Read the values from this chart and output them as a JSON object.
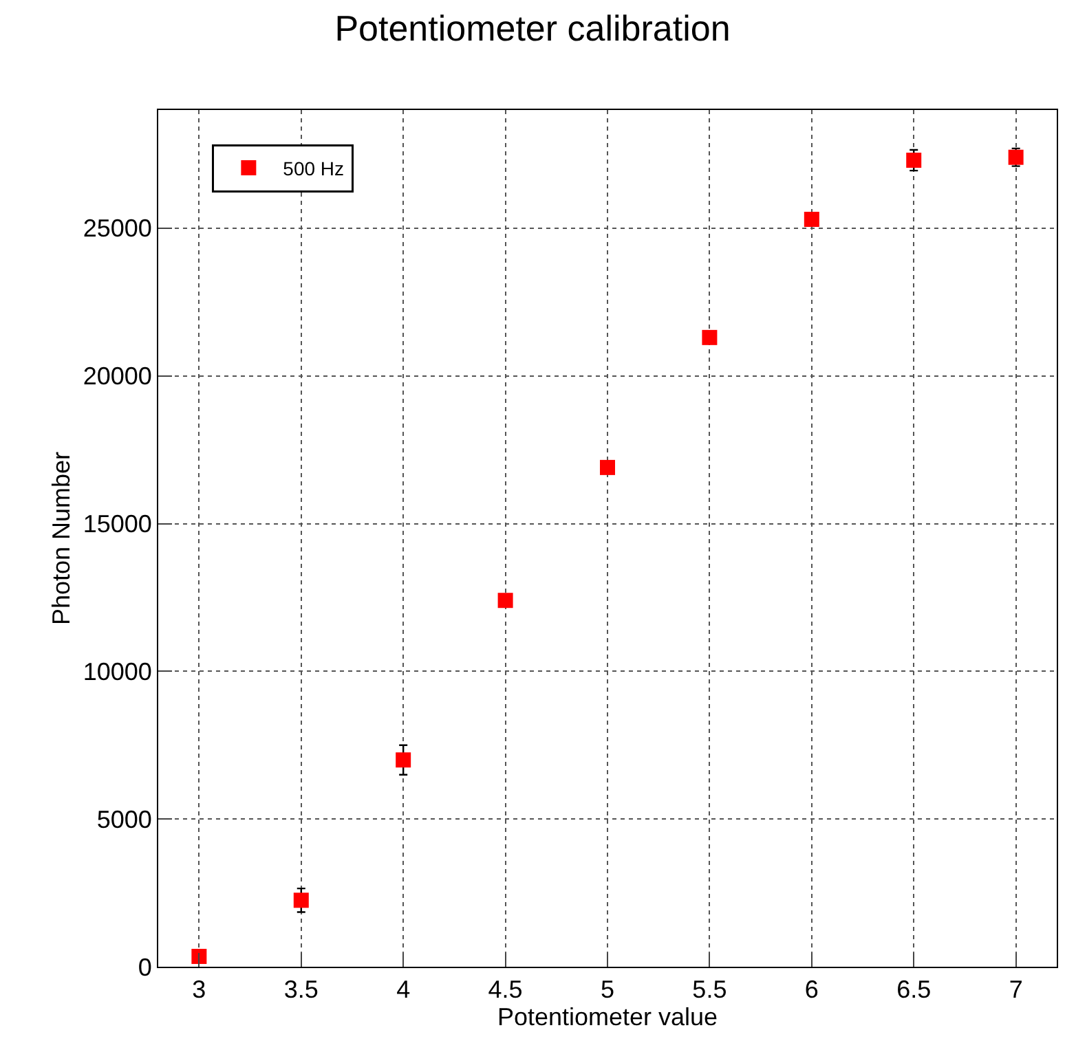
{
  "chart_data": {
    "type": "scatter",
    "title": "Potentiometer calibration",
    "xlabel": "Potentiometer value",
    "ylabel": "Photon Number",
    "x": [
      3,
      3.5,
      4,
      4.5,
      5,
      5.5,
      6,
      6.5,
      7
    ],
    "series": [
      {
        "name": "500 Hz",
        "color": "#ff0000",
        "values": [
          350,
          2250,
          7000,
          12400,
          16900,
          21300,
          25300,
          27300,
          27400
        ],
        "errors": [
          null,
          400,
          500,
          null,
          null,
          null,
          null,
          350,
          300
        ]
      }
    ],
    "xlim": [
      2.8,
      7.2
    ],
    "xticks": [
      3,
      3.5,
      4,
      4.5,
      5,
      5.5,
      6,
      6.5,
      7
    ],
    "ylim": [
      0,
      29000
    ],
    "yticks": [
      0,
      5000,
      10000,
      15000,
      20000,
      25000
    ],
    "grid": true,
    "legend": "top left",
    "marker": "square"
  }
}
